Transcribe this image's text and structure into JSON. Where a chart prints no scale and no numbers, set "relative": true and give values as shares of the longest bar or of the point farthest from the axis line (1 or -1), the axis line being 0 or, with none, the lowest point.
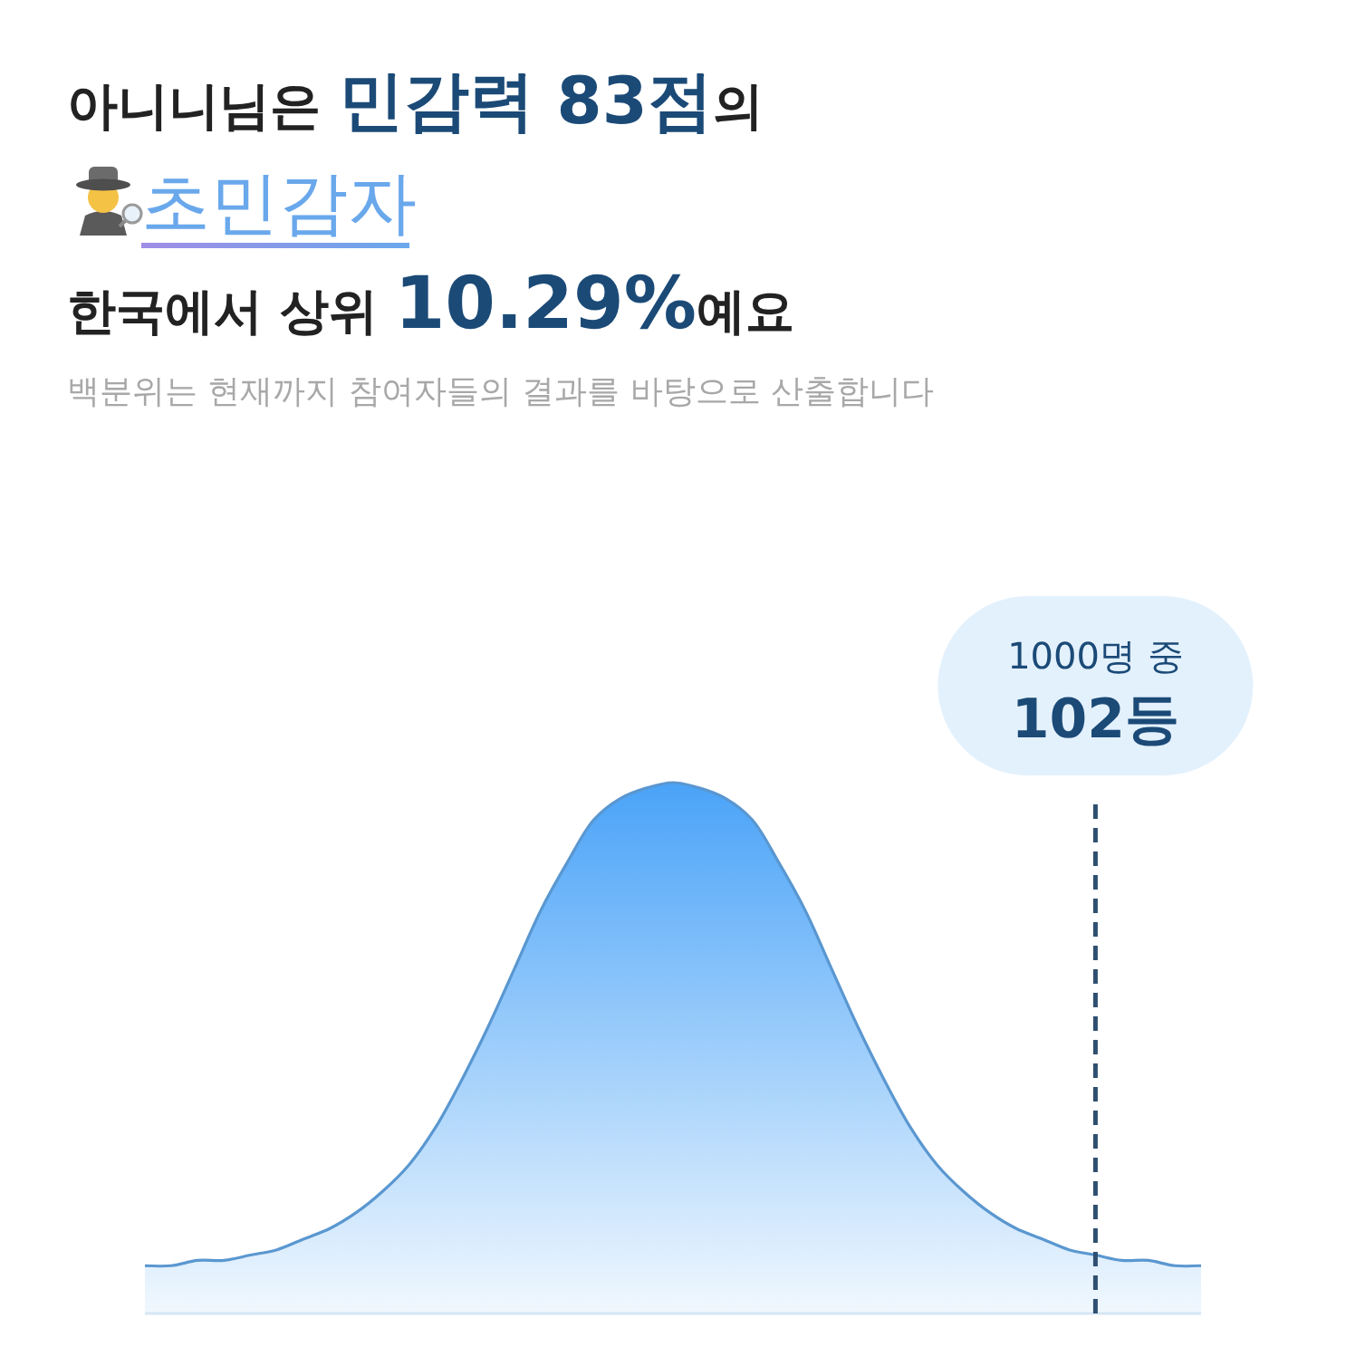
{
  "chart_data": {
    "type": "area",
    "title": "아니니님은 민감력 83점의 초민감자",
    "subtitle": "한국에서 상위 10.29%예요",
    "annotations": [
      "백분위는 현재까지 참여자들의 결과를 바탕으로 산출합니다",
      "1000명 중\n102등"
    ],
    "categories": [
      null,
      null,
      null,
      null,
      null,
      null,
      null,
      null,
      null,
      null,
      null,
      null,
      null,
      null,
      null,
      null,
      null,
      null,
      null,
      null,
      null,
      null,
      null,
      null,
      null,
      null,
      null,
      null,
      null,
      null,
      null,
      null,
      null,
      null,
      null,
      null,
      null,
      null,
      null,
      null,
      null
    ],
    "relative": true,
    "series": [
      {
        "color": "#4aa3f8",
        "values": [
          0.09,
          0.09,
          0.1,
          0.1,
          0.11,
          0.12,
          0.14,
          0.16,
          0.19,
          0.23,
          0.28,
          0.35,
          0.44,
          0.54,
          0.65,
          0.76,
          0.85,
          0.93,
          0.97,
          0.99,
          1.0,
          0.99,
          0.97,
          0.93,
          0.85,
          0.76,
          0.65,
          0.54,
          0.44,
          0.35,
          0.28,
          0.23,
          0.19,
          0.16,
          0.14,
          0.12,
          0.11,
          0.1,
          0.1,
          0.09,
          0.09
        ]
      }
    ]
  }
}
